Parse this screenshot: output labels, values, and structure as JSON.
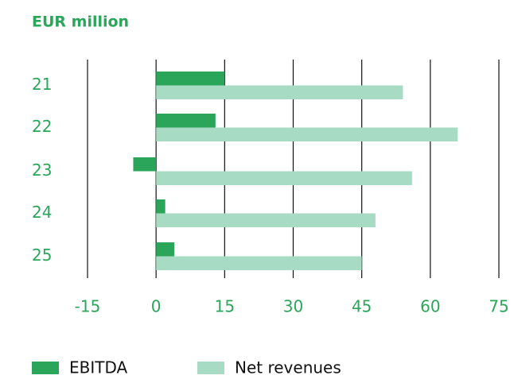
{
  "chart_data": {
    "type": "hbar",
    "title": "EUR million",
    "categories": [
      "21",
      "22",
      "23",
      "24",
      "25"
    ],
    "series": [
      {
        "name": "EBITDA",
        "color": "#2aa55a",
        "values": [
          15,
          13,
          -5,
          2,
          4
        ]
      },
      {
        "name": "Net revenues",
        "color": "#a8dbc3",
        "values": [
          54,
          66,
          56,
          48,
          45
        ]
      }
    ],
    "xlim": [
      -15,
      75
    ],
    "xticks": [
      -15,
      0,
      15,
      30,
      45,
      60,
      75
    ],
    "grid": true,
    "legend": "bottom"
  }
}
